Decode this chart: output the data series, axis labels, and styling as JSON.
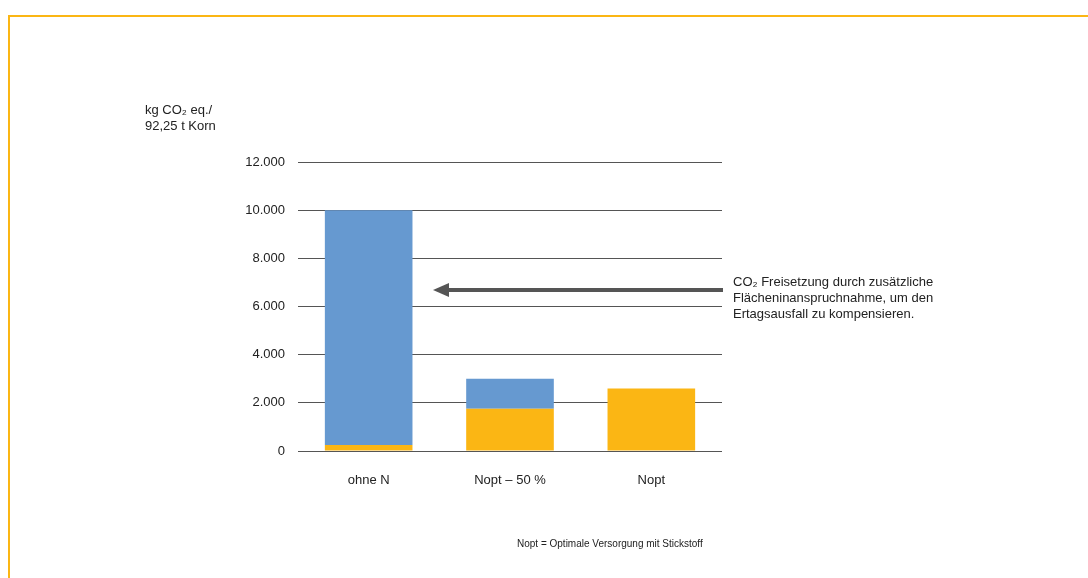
{
  "chart_data": {
    "type": "bar",
    "ylabel": "kg CO₂ eq./\n92,25 t Korn",
    "categories": [
      "ohne N",
      "Nopt – 50 %",
      "Nopt"
    ],
    "stacked": true,
    "series": [
      {
        "color": "#fbb614",
        "values": [
          250,
          1750,
          2600
        ]
      },
      {
        "color": "#6699d0",
        "values": [
          9750,
          1250,
          null
        ]
      }
    ],
    "ylim": [
      0,
      12000
    ],
    "yticks": [
      {
        "value": 0,
        "label": "0"
      },
      {
        "value": 2000,
        "label": "2.000"
      },
      {
        "value": 4000,
        "label": "4.000"
      },
      {
        "value": 6000,
        "label": "6.000"
      },
      {
        "value": 8000,
        "label": "8.000"
      },
      {
        "value": 10000,
        "label": "10.000"
      },
      {
        "value": 12000,
        "label": "12.000"
      }
    ],
    "grid": "y",
    "annotations": [
      "CO₂ Freisetzung durch zusätzliche Flächeninanspruchnahme, um den Ertagsausfall zu kompensieren.",
      "Nopt = Optimale Versorgung mit Stickstoff"
    ]
  }
}
